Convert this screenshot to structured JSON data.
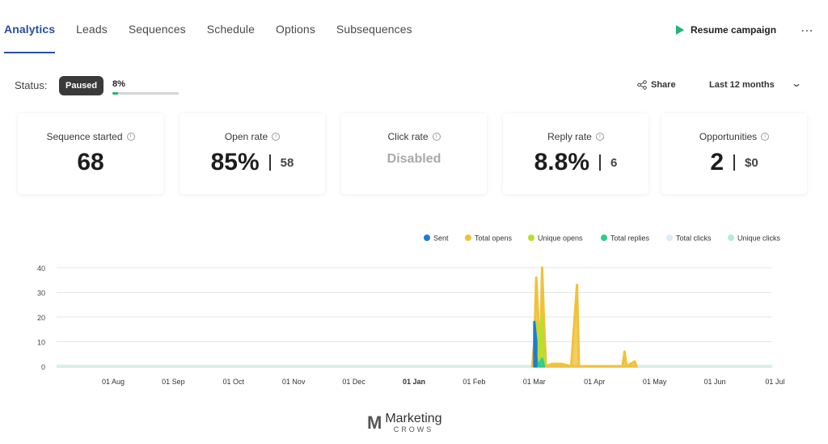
{
  "tabs": [
    "Analytics",
    "Leads",
    "Sequences",
    "Schedule",
    "Options",
    "Subsequences"
  ],
  "header": {
    "resume_label": "Resume campaign",
    "more_label": "⋯"
  },
  "status": {
    "label": "Status:",
    "badge": "Paused",
    "progress_text": "8%",
    "progress_value": 0.08
  },
  "controls": {
    "share_label": "Share",
    "range_label": "Last 12 months"
  },
  "cards": {
    "sequence_started": {
      "title": "Sequence started",
      "value": "68"
    },
    "open_rate": {
      "title": "Open rate",
      "value": "85%",
      "sub": "58"
    },
    "click_rate": {
      "title": "Click rate",
      "value": "Disabled"
    },
    "reply_rate": {
      "title": "Reply rate",
      "value": "8.8%",
      "sub": "6"
    },
    "opportunities": {
      "title": "Opportunities",
      "value": "2",
      "sub": "$0"
    }
  },
  "colors": {
    "accent": "#2a4e9c",
    "green": "#22b573"
  },
  "chart_data": {
    "type": "area",
    "yticks": [
      0,
      10,
      20,
      30,
      40
    ],
    "ylim": [
      0,
      40
    ],
    "xticks": [
      "01 Aug",
      "01 Sep",
      "01 Oct",
      "01 Nov",
      "01 Dec",
      "01 Jan",
      "01 Feb",
      "01 Mar",
      "01 Apr",
      "01 May",
      "01 Jun",
      "01 Jul"
    ],
    "legend_position": "top-right",
    "series": [
      {
        "name": "Sent",
        "color": "#1e7bd6",
        "points": [
          [
            "01 Mar",
            18
          ],
          [
            "02 Mar",
            10
          ]
        ]
      },
      {
        "name": "Total opens",
        "color": "#f0c23b",
        "points": [
          [
            "28 Feb",
            0
          ],
          [
            "01 Mar",
            10
          ],
          [
            "02 Mar",
            36
          ],
          [
            "03 Mar",
            20
          ],
          [
            "04 Mar",
            0
          ],
          [
            "05 Mar",
            40
          ],
          [
            "06 Mar",
            18
          ],
          [
            "07 Mar",
            0
          ],
          [
            "10 Mar",
            1
          ],
          [
            "12 Mar",
            1
          ],
          [
            "15 Mar",
            1
          ],
          [
            "20 Mar",
            0
          ],
          [
            "23 Mar",
            33
          ],
          [
            "24 Mar",
            0
          ],
          [
            "15 Apr",
            0
          ],
          [
            "16 Apr",
            6
          ],
          [
            "17 Apr",
            0
          ],
          [
            "21 Apr",
            2
          ],
          [
            "22 Apr",
            0
          ]
        ]
      },
      {
        "name": "Unique opens",
        "color": "#b6e02b",
        "points": [
          [
            "01 Mar",
            0
          ],
          [
            "02 Mar",
            18
          ],
          [
            "03 Mar",
            6
          ],
          [
            "05 Mar",
            20
          ],
          [
            "06 Mar",
            0
          ]
        ]
      },
      {
        "name": "Total replies",
        "color": "#2ecc8a",
        "points": [
          [
            "01 Mar",
            0
          ],
          [
            "02 Mar",
            4
          ],
          [
            "03 Mar",
            0
          ],
          [
            "05 Mar",
            3
          ],
          [
            "06 Mar",
            0
          ]
        ]
      },
      {
        "name": "Total clicks",
        "color": "#d8eef2",
        "points": []
      },
      {
        "name": "Unique clicks",
        "color": "#b8e8d8",
        "points": []
      }
    ]
  },
  "watermark": {
    "line1": "Marketing",
    "line2": "CROWS",
    "logo": "M"
  }
}
